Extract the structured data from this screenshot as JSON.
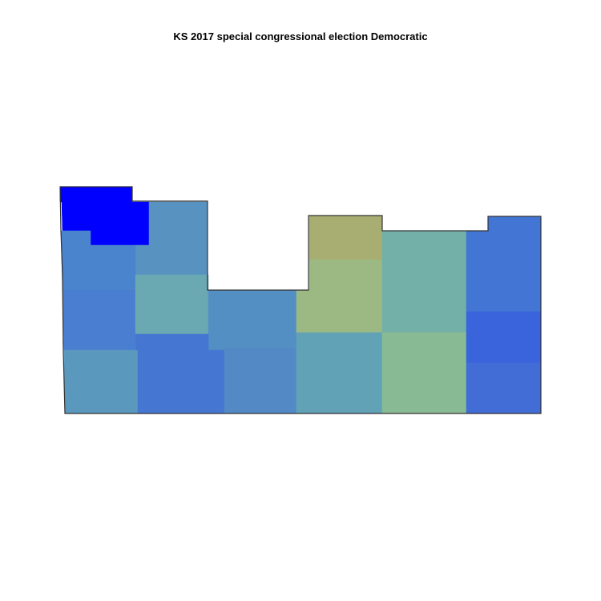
{
  "title": "KS 2017 special congressional election Democratic",
  "chart_data": {
    "type": "choropleth",
    "title": "KS 2017 special congressional election Democratic",
    "legend": "none",
    "color_scale": [
      "#0000ff",
      "#a8ae72"
    ],
    "counties": [
      {
        "shape": "nw-bright",
        "color": "#0000ff"
      },
      {
        "shape": "r1c2",
        "color": "#5792c1"
      },
      {
        "shape": "r2c1",
        "color": "#4a84cc"
      },
      {
        "shape": "r3c1",
        "color": "#4a7ed0"
      },
      {
        "shape": "r3c2",
        "color": "#6aa8b2"
      },
      {
        "shape": "r3c3",
        "color": "#548fc4"
      },
      {
        "shape": "r4c1",
        "color": "#5b98be"
      },
      {
        "shape": "r4c2",
        "color": "#4577d2"
      },
      {
        "shape": "r4c3",
        "color": "#538ac5"
      },
      {
        "shape": "r1c4",
        "color": "#a8ae72"
      },
      {
        "shape": "r2c4",
        "color": "#9cb983"
      },
      {
        "shape": "r4c4",
        "color": "#62a2b6"
      },
      {
        "shape": "r1c5",
        "color": "#73b0a8"
      },
      {
        "shape": "r4c5",
        "color": "#88bb94"
      },
      {
        "shape": "r1c6",
        "color": "#4275d4"
      },
      {
        "shape": "r3c6",
        "color": "#3a64dc"
      },
      {
        "shape": "r4c6",
        "color": "#426cd6"
      }
    ]
  }
}
